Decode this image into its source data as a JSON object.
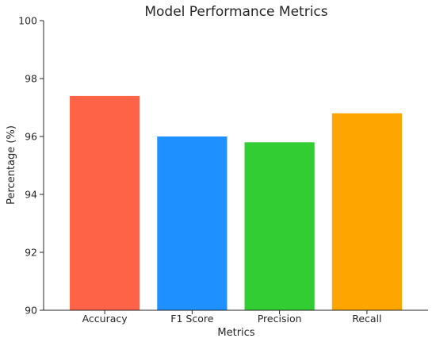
{
  "chart_data": {
    "type": "bar",
    "title": "Model Performance Metrics",
    "xlabel": "Metrics",
    "ylabel": "Percentage (%)",
    "categories": [
      "Accuracy",
      "F1 Score",
      "Precision",
      "Recall"
    ],
    "values": [
      97.4,
      96.0,
      95.8,
      96.8
    ],
    "colors": [
      "#ff6347",
      "#1e90ff",
      "#32cd32",
      "#ffa500"
    ],
    "ylim": [
      90,
      100
    ],
    "yticks": [
      "90",
      "92",
      "94",
      "96",
      "98",
      "100"
    ],
    "grid": false,
    "legend": "none"
  }
}
